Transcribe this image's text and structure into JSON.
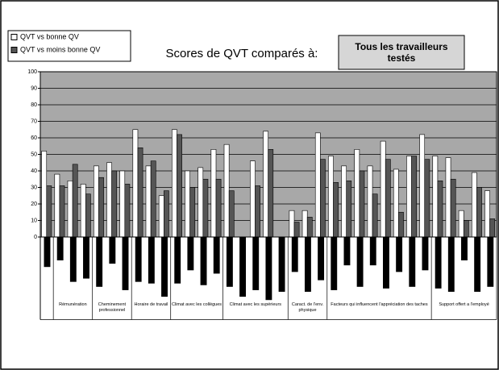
{
  "chart_data": {
    "type": "bar",
    "title": "Scores de QVT comparés à:",
    "selector": "Tous les travailleurs testés",
    "categories": [
      null,
      null,
      null,
      null,
      null,
      null,
      null,
      null,
      null,
      null,
      null,
      null,
      null,
      null,
      null,
      null,
      null,
      null,
      null,
      null,
      null,
      null,
      null,
      null,
      null,
      null,
      null,
      null,
      null,
      null,
      null,
      null,
      null,
      null,
      null
    ],
    "category_groups": [
      {
        "label": null,
        "count": 1
      },
      {
        "label": "Rémunération",
        "count": 3
      },
      {
        "label": "Cheminement professionnel",
        "count": 3
      },
      {
        "label": "Horaire de travail",
        "count": 3
      },
      {
        "label": "Climat avec les collègues",
        "count": 4
      },
      {
        "label": "Climat avec les supérieurs",
        "count": 5
      },
      {
        "label": "Caract. de l'env. physique",
        "count": 3
      },
      {
        "label": "Facteurs qui influencent l'appréciation des taches",
        "count": 8
      },
      {
        "label": "Support offert a l'employé",
        "count": 5
      }
    ],
    "series": [
      {
        "name": "QVT vs bonne QV",
        "color": "#ffffff",
        "values": [
          52,
          38,
          34,
          32,
          43,
          45,
          40,
          65,
          43,
          25,
          65,
          40,
          42,
          53,
          56,
          null,
          46,
          64,
          null,
          16,
          16,
          63,
          49,
          43,
          53,
          43,
          58,
          41,
          49,
          62,
          49,
          48,
          16,
          39,
          28
        ]
      },
      {
        "name": "QVT vs moins bonne QV",
        "color": "#555555",
        "values": [
          31,
          31,
          44,
          26,
          36,
          40,
          32,
          54,
          46,
          28,
          62,
          30,
          35,
          35,
          28,
          null,
          31,
          53,
          null,
          9,
          12,
          47,
          33,
          34,
          40,
          26,
          47,
          15,
          49,
          47,
          34,
          35,
          10,
          30,
          11
        ]
      },
      {
        "color": "#000000",
        "values": [
          -18,
          -14,
          -27,
          -25,
          -30,
          -16,
          -32,
          -27,
          -28,
          -36,
          -28,
          -20,
          -29,
          -22,
          -30,
          -36,
          -32,
          -38,
          -33,
          -21,
          -33,
          -26,
          -32,
          -17,
          -30,
          -17,
          -31,
          -21,
          -30,
          -20,
          -31,
          -33,
          -14,
          -33,
          -30
        ]
      }
    ],
    "ylim": [
      -50,
      100
    ],
    "yticks": [
      0,
      10,
      20,
      30,
      40,
      50,
      60,
      70,
      80,
      90,
      100
    ],
    "grid": true
  }
}
